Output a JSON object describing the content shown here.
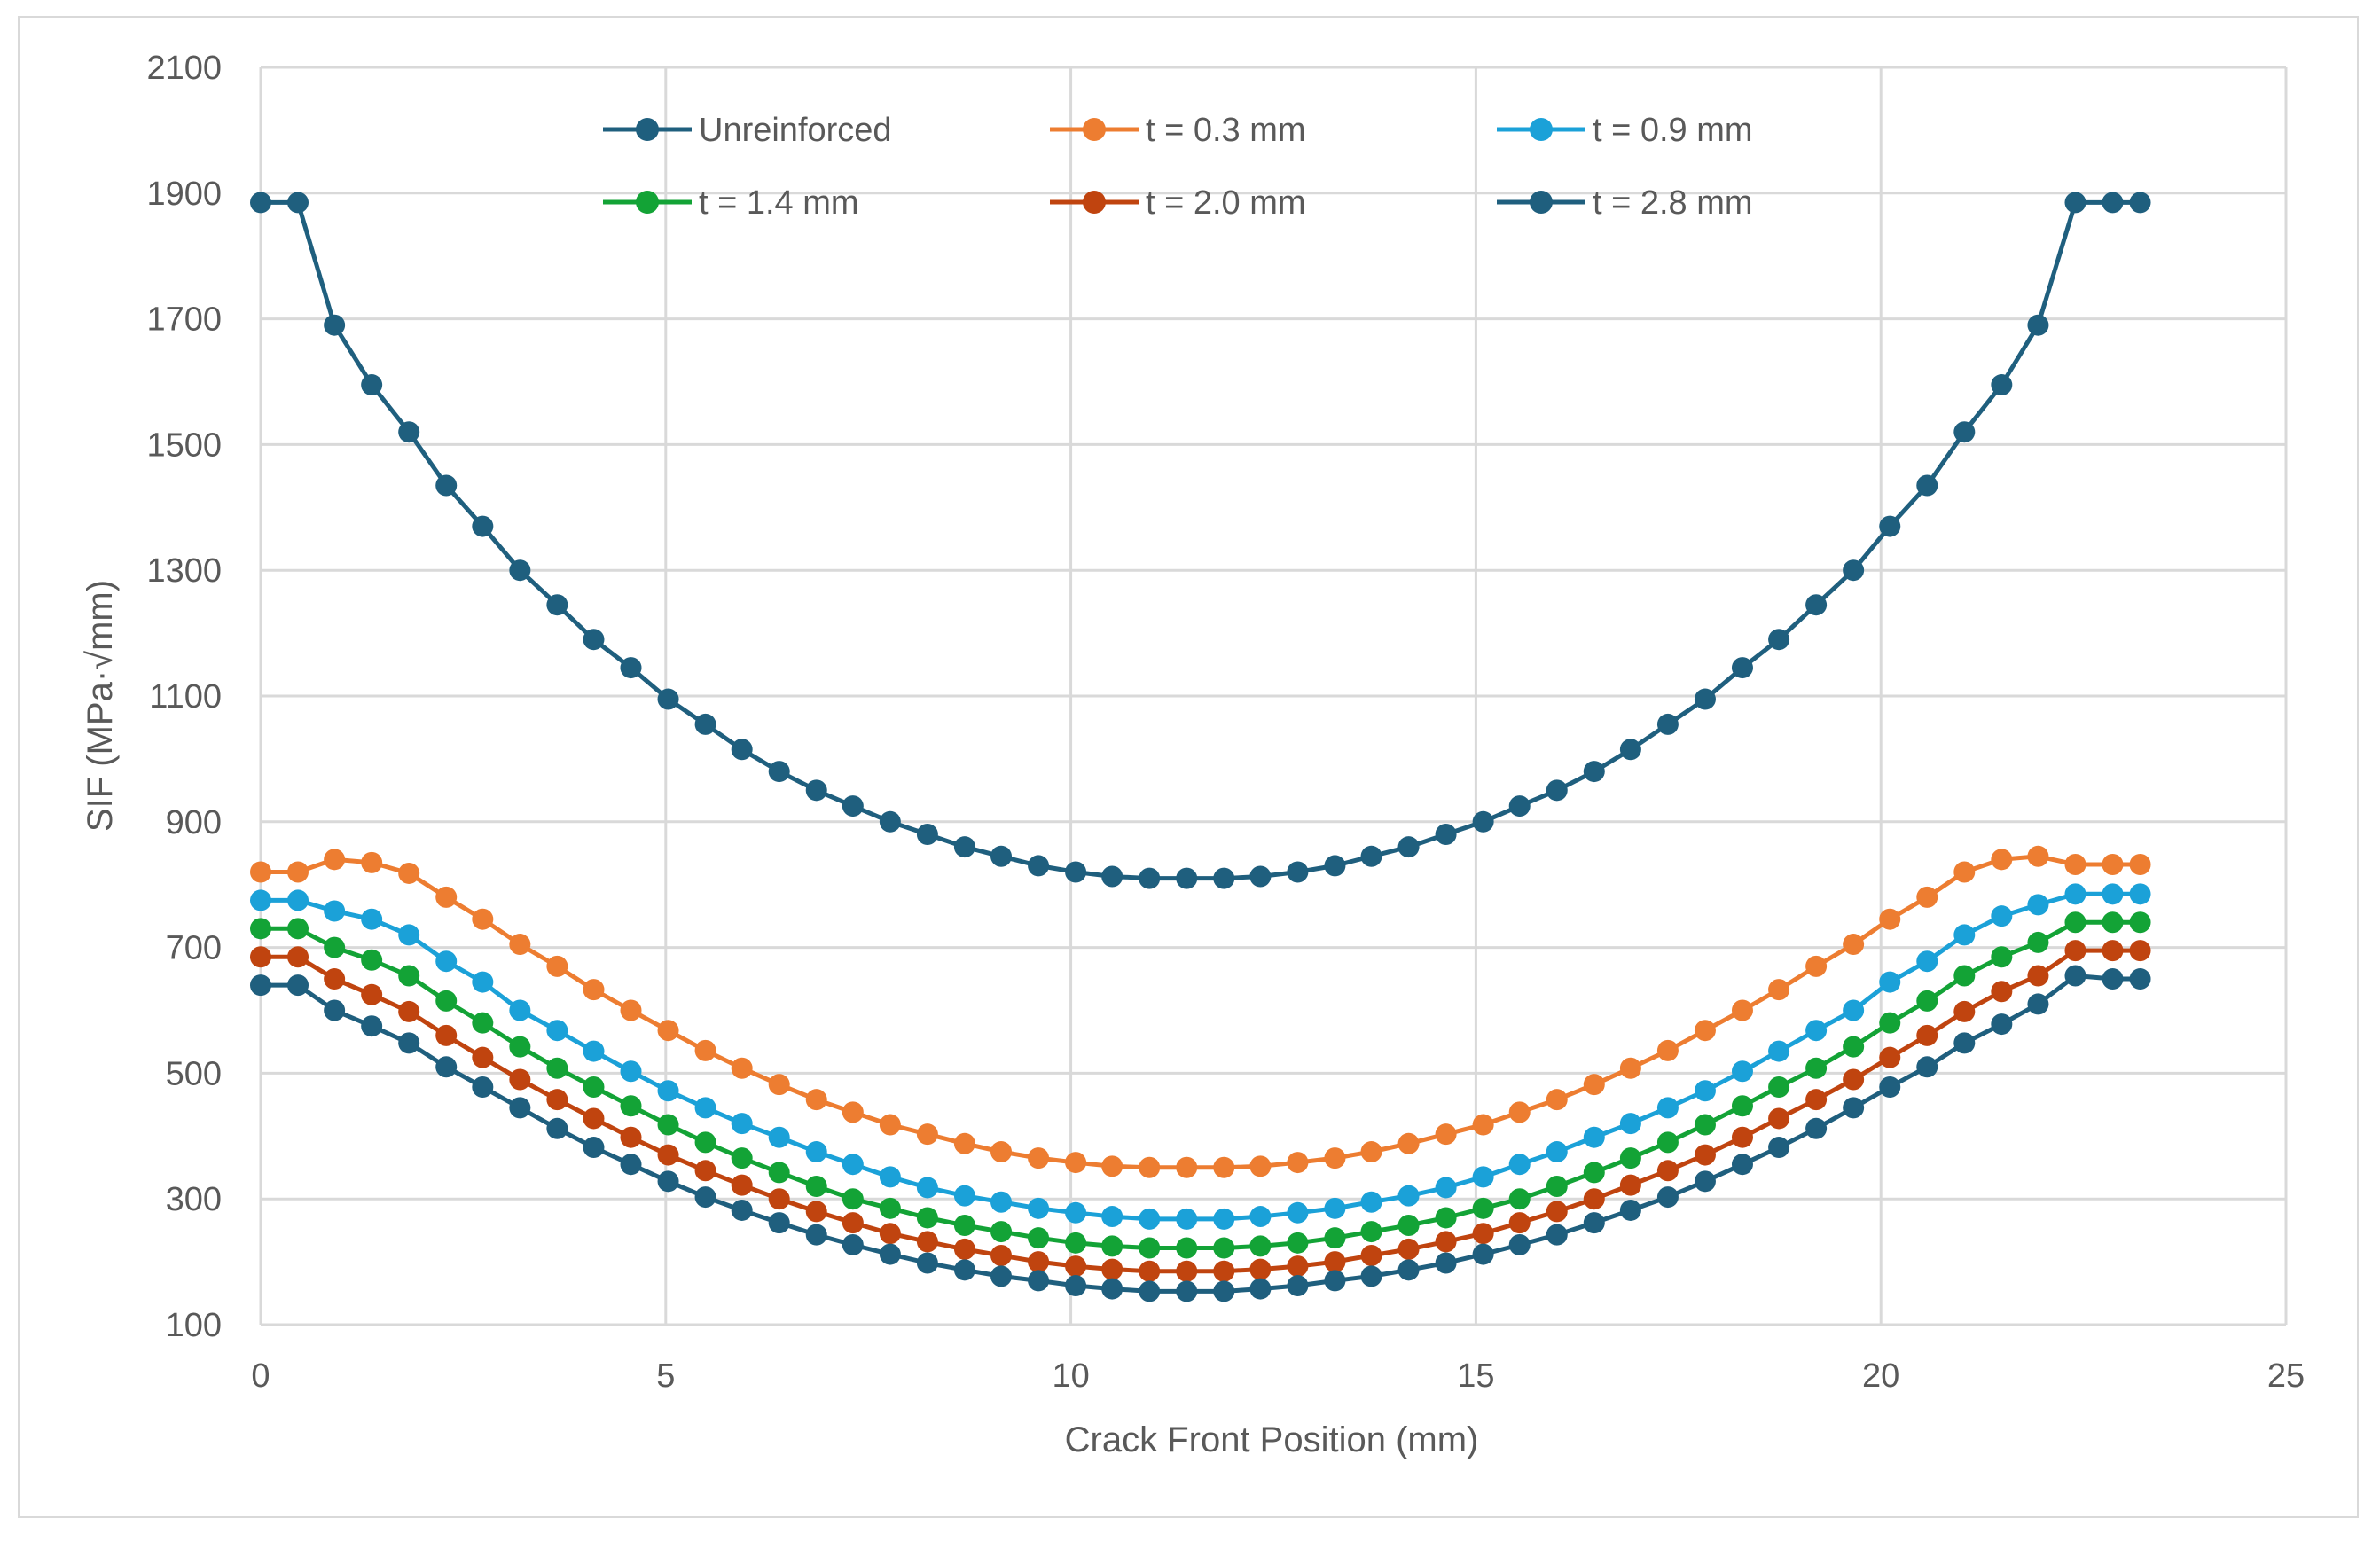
{
  "chart_data": {
    "type": "line",
    "title": "",
    "xlabel": "Crack Front Position (mm)",
    "ylabel": "SIF (MPa·√mm)",
    "xlim": [
      0,
      25
    ],
    "ylim": [
      100,
      2100
    ],
    "xticks": [
      0,
      5,
      10,
      15,
      20,
      25
    ],
    "yticks": [
      100,
      300,
      500,
      700,
      900,
      1100,
      1300,
      1500,
      1700,
      1900,
      2100
    ],
    "grid": true,
    "legend_position": "top",
    "x": [
      0,
      0.46,
      0.91,
      1.37,
      1.83,
      2.29,
      2.74,
      3.2,
      3.66,
      4.11,
      4.57,
      5.03,
      5.49,
      5.94,
      6.4,
      6.86,
      7.31,
      7.77,
      8.23,
      8.69,
      9.14,
      9.6,
      10.06,
      10.51,
      10.97,
      11.43,
      11.89,
      12.34,
      12.8,
      13.26,
      13.71,
      14.17,
      14.63,
      15.09,
      15.54,
      16.0,
      16.46,
      16.91,
      17.37,
      17.83,
      18.29,
      18.74,
      19.2,
      19.66,
      20.11,
      20.57,
      21.03,
      21.49,
      21.94,
      22.4,
      22.86,
      23.2
    ],
    "series": [
      {
        "name": "Unreinforced",
        "color": "#1f5f7e",
        "values": [
          1885,
          1885,
          1690,
          1595,
          1520,
          1435,
          1370,
          1300,
          1245,
          1190,
          1145,
          1095,
          1055,
          1015,
          980,
          950,
          925,
          900,
          880,
          860,
          845,
          830,
          820,
          813,
          810,
          810,
          810,
          813,
          820,
          830,
          845,
          860,
          880,
          900,
          925,
          950,
          980,
          1015,
          1055,
          1095,
          1145,
          1190,
          1245,
          1300,
          1370,
          1435,
          1520,
          1595,
          1690,
          1885,
          1885,
          1885
        ]
      },
      {
        "name": "t = 0.3 mm",
        "color": "#ed7d31",
        "values": [
          820,
          820,
          840,
          835,
          818,
          780,
          745,
          705,
          670,
          633,
          600,
          568,
          536,
          508,
          482,
          458,
          438,
          418,
          403,
          388,
          375,
          365,
          358,
          352,
          350,
          350,
          350,
          352,
          358,
          365,
          375,
          388,
          403,
          418,
          438,
          458,
          482,
          508,
          536,
          568,
          600,
          633,
          670,
          705,
          745,
          780,
          820,
          840,
          845,
          832,
          832,
          832
        ]
      },
      {
        "name": "t = 0.9 mm",
        "color": "#1ba1d8",
        "values": [
          775,
          775,
          758,
          745,
          720,
          678,
          645,
          600,
          568,
          535,
          503,
          472,
          445,
          420,
          398,
          375,
          355,
          335,
          318,
          305,
          295,
          285,
          278,
          272,
          268,
          268,
          268,
          272,
          278,
          285,
          295,
          305,
          318,
          335,
          355,
          375,
          398,
          420,
          445,
          472,
          503,
          535,
          568,
          600,
          645,
          678,
          720,
          750,
          768,
          785,
          785,
          785
        ]
      },
      {
        "name": "t = 1.4 mm",
        "color": "#13a336",
        "values": [
          730,
          730,
          700,
          680,
          655,
          615,
          580,
          542,
          508,
          478,
          448,
          418,
          390,
          365,
          342,
          320,
          300,
          285,
          270,
          258,
          248,
          238,
          230,
          225,
          222,
          222,
          222,
          225,
          230,
          238,
          248,
          258,
          270,
          285,
          300,
          320,
          342,
          365,
          390,
          418,
          448,
          478,
          508,
          542,
          580,
          615,
          655,
          685,
          708,
          740,
          740,
          740
        ]
      },
      {
        "name": "t = 2.0 mm",
        "color": "#c0440f",
        "values": [
          685,
          685,
          650,
          625,
          598,
          560,
          525,
          490,
          458,
          428,
          398,
          370,
          345,
          322,
          300,
          280,
          262,
          245,
          232,
          220,
          210,
          200,
          193,
          188,
          185,
          185,
          185,
          188,
          193,
          200,
          210,
          220,
          232,
          245,
          262,
          280,
          300,
          322,
          345,
          370,
          398,
          428,
          458,
          490,
          525,
          560,
          598,
          630,
          655,
          695,
          695,
          695
        ]
      },
      {
        "name": "t = 2.8 mm",
        "color": "#1f5f7e",
        "values": [
          640,
          640,
          600,
          575,
          548,
          510,
          478,
          445,
          412,
          382,
          355,
          328,
          303,
          282,
          262,
          243,
          227,
          212,
          198,
          187,
          177,
          170,
          162,
          157,
          153,
          153,
          153,
          157,
          162,
          170,
          177,
          187,
          198,
          212,
          227,
          243,
          262,
          282,
          303,
          328,
          355,
          382,
          412,
          445,
          478,
          510,
          548,
          578,
          610,
          655,
          650,
          650
        ]
      }
    ]
  }
}
